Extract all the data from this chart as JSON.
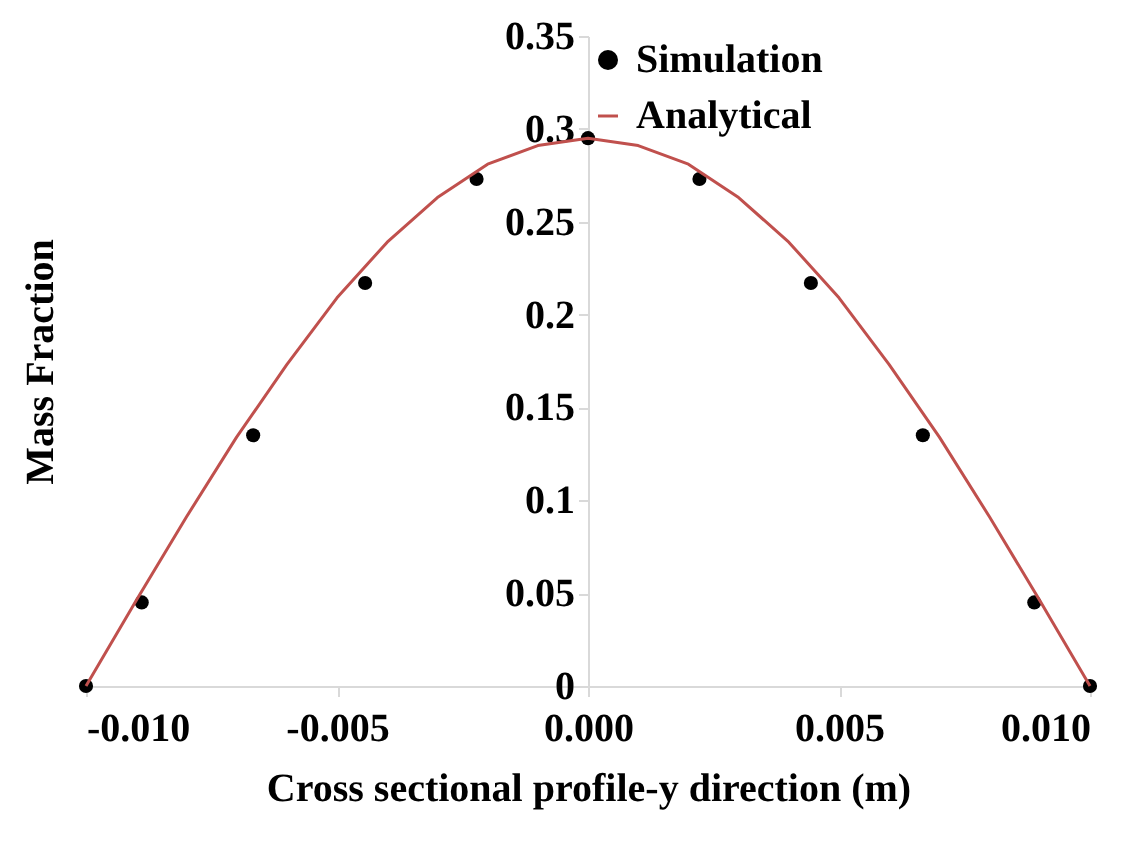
{
  "chart_data": {
    "type": "scatter",
    "xlabel": "Cross sectional profile-y direction (m)",
    "ylabel": "Mass Fraction",
    "xlim": [
      -0.01,
      0.01
    ],
    "xticks": [
      {
        "value": -0.01,
        "label": "-0.010"
      },
      {
        "value": -0.005,
        "label": "-0.005"
      },
      {
        "value": 0,
        "label": "0.000"
      },
      {
        "value": 0.005,
        "label": "0.005"
      },
      {
        "value": 0.01,
        "label": "0.010"
      }
    ],
    "ylim": [
      0,
      0.35
    ],
    "yticks": [
      0,
      0.05,
      0.1,
      0.15,
      0.2,
      0.25,
      0.3,
      0.35
    ],
    "grid": false,
    "legend": "top right",
    "series": [
      {
        "name": "Simulation",
        "type": "scatter",
        "marker": "circle",
        "color": "#000000",
        "x": [
          -0.01,
          -0.00889,
          -0.00667,
          -0.00444,
          -0.00222,
          0,
          0.00222,
          0.00444,
          0.00667,
          0.00889,
          0.01
        ],
        "values": [
          0,
          0.045,
          0.135,
          0.217,
          0.273,
          0.295,
          0.273,
          0.217,
          0.135,
          0.045,
          0
        ]
      },
      {
        "name": "Analytical",
        "type": "line",
        "line_style": "solid",
        "color": "#c0504d",
        "x": [
          -0.01,
          -0.009,
          -0.008,
          -0.007,
          -0.006,
          -0.005,
          -0.004,
          -0.003,
          -0.002,
          -0.001,
          0,
          0.001,
          0.002,
          0.003,
          0.004,
          0.005,
          0.006,
          0.007,
          0.008,
          0.009,
          0.01
        ],
        "values": [
          0,
          0.046,
          0.091,
          0.134,
          0.173,
          0.209,
          0.239,
          0.263,
          0.281,
          0.291,
          0.295,
          0.291,
          0.281,
          0.263,
          0.239,
          0.209,
          0.173,
          0.134,
          0.091,
          0.046,
          0
        ]
      }
    ]
  }
}
